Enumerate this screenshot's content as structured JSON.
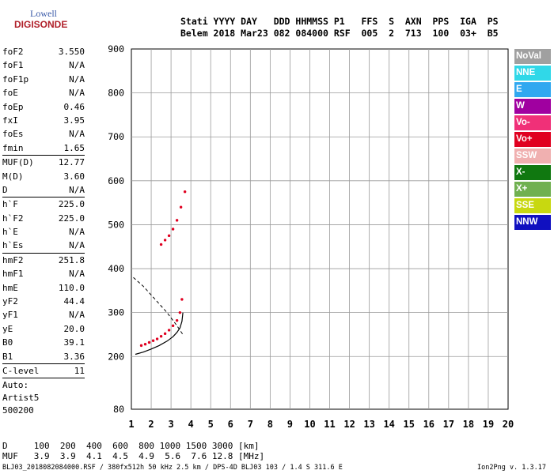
{
  "logo": {
    "line1": "Lowell",
    "line2": "DIGISONDE"
  },
  "header": {
    "line1": "Stati YYYY DAY   DDD HHMMSS P1   FFS  S  AXN  PPS  IGA  PS",
    "line2": "Belem 2018 Mar23 082 084000 RSF  005  2  713  100  03+  B5"
  },
  "parameters": [
    {
      "key": "foF2",
      "value": "3.550"
    },
    {
      "key": "foF1",
      "value": "N/A"
    },
    {
      "key": "foF1p",
      "value": "N/A"
    },
    {
      "key": "foE",
      "value": "N/A"
    },
    {
      "key": "foEp",
      "value": "0.46"
    },
    {
      "key": "fxI",
      "value": "3.95"
    },
    {
      "key": "foEs",
      "value": "N/A"
    },
    {
      "key": "fmin",
      "value": "1.65"
    },
    {
      "sep": true
    },
    {
      "key": "MUF(D)",
      "value": "12.77"
    },
    {
      "key": "M(D)",
      "value": "3.60"
    },
    {
      "key": "D",
      "value": "N/A"
    },
    {
      "sep": true
    },
    {
      "key": "h`F",
      "value": "225.0"
    },
    {
      "key": "h`F2",
      "value": "225.0"
    },
    {
      "key": "h`E",
      "value": "N/A"
    },
    {
      "key": "h`Es",
      "value": "N/A"
    },
    {
      "sep": true
    },
    {
      "key": "hmF2",
      "value": "251.8"
    },
    {
      "key": "hmF1",
      "value": "N/A"
    },
    {
      "key": "hmE",
      "value": "110.0"
    },
    {
      "key": "yF2",
      "value": "44.4"
    },
    {
      "key": "yF1",
      "value": "N/A"
    },
    {
      "key": "yE",
      "value": "20.0"
    },
    {
      "key": "B0",
      "value": "39.1"
    },
    {
      "key": "B1",
      "value": "3.36"
    },
    {
      "sep": true
    },
    {
      "key": "C-level",
      "value": "11"
    },
    {
      "sep": true
    }
  ],
  "auto": {
    "line1": "Auto:",
    "line2": "Artist5",
    "line3": "500200"
  },
  "legend": [
    {
      "label": "NoVal",
      "color": "#a0a0a0"
    },
    {
      "label": "NNE",
      "color": "#30d8e8"
    },
    {
      "label": "E",
      "color": "#30a8f0"
    },
    {
      "label": "W",
      "color": "#a000a0"
    },
    {
      "label": "Vo-",
      "color": "#f03078"
    },
    {
      "label": "Vo+",
      "color": "#e00020"
    },
    {
      "label": "SSW",
      "color": "#f0b0b0"
    },
    {
      "label": "X-",
      "color": "#107810"
    },
    {
      "label": "X+",
      "color": "#70b050"
    },
    {
      "label": "SSE",
      "color": "#c8d810"
    },
    {
      "label": "NNW",
      "color": "#1010c0"
    }
  ],
  "footer": {
    "line1": "D     100  200  400  600  800 1000 1500 3000 [km]",
    "line2": "MUF   3.9  3.9  4.1  4.5  4.9  5.6  7.6 12.8 [MHz]"
  },
  "bottomline": "BLJ03_2018082084000.RSF / 380fx512h 50 kHz 2.5 km / DPS-4D BLJ03 103 / 1.4 S 311.6 E",
  "version": "Ion2Png v. 1.3.17",
  "chart_data": {
    "type": "scatter",
    "xlim": [
      1,
      20
    ],
    "ylim": [
      80,
      900
    ],
    "xticks": [
      1,
      2,
      3,
      4,
      5,
      6,
      7,
      8,
      9,
      10,
      11,
      12,
      13,
      14,
      15,
      16,
      17,
      18,
      19,
      20
    ],
    "yticks": [
      200,
      300,
      400,
      500,
      600,
      700,
      800,
      900
    ],
    "ytick_extra": [
      80
    ],
    "grid": true,
    "series": [
      {
        "name": "Vo+",
        "color": "#e00020",
        "x": [
          1.5,
          1.7,
          1.9,
          2.1,
          2.3,
          2.5,
          2.7,
          2.9,
          3.1,
          3.3,
          3.45,
          3.55
        ],
        "y": [
          225,
          228,
          232,
          236,
          240,
          246,
          252,
          260,
          270,
          282,
          300,
          330
        ]
      },
      {
        "name": "Vo+",
        "color": "#e00020",
        "x": [
          2.5,
          2.7,
          2.9,
          3.1,
          3.3,
          3.5,
          3.7
        ],
        "y": [
          455,
          465,
          475,
          490,
          510,
          540,
          575
        ]
      }
    ],
    "profile": {
      "x": [
        1.2,
        1.6,
        2.0,
        2.4,
        2.8,
        3.1,
        3.3,
        3.45,
        3.55,
        3.6
      ],
      "y": [
        205,
        210,
        217,
        225,
        235,
        245,
        255,
        265,
        280,
        300
      ]
    },
    "profile_dashed": {
      "x": [
        1.1,
        1.6,
        2.2,
        2.8,
        3.3,
        3.6
      ],
      "y": [
        380,
        360,
        330,
        300,
        270,
        250
      ]
    }
  }
}
